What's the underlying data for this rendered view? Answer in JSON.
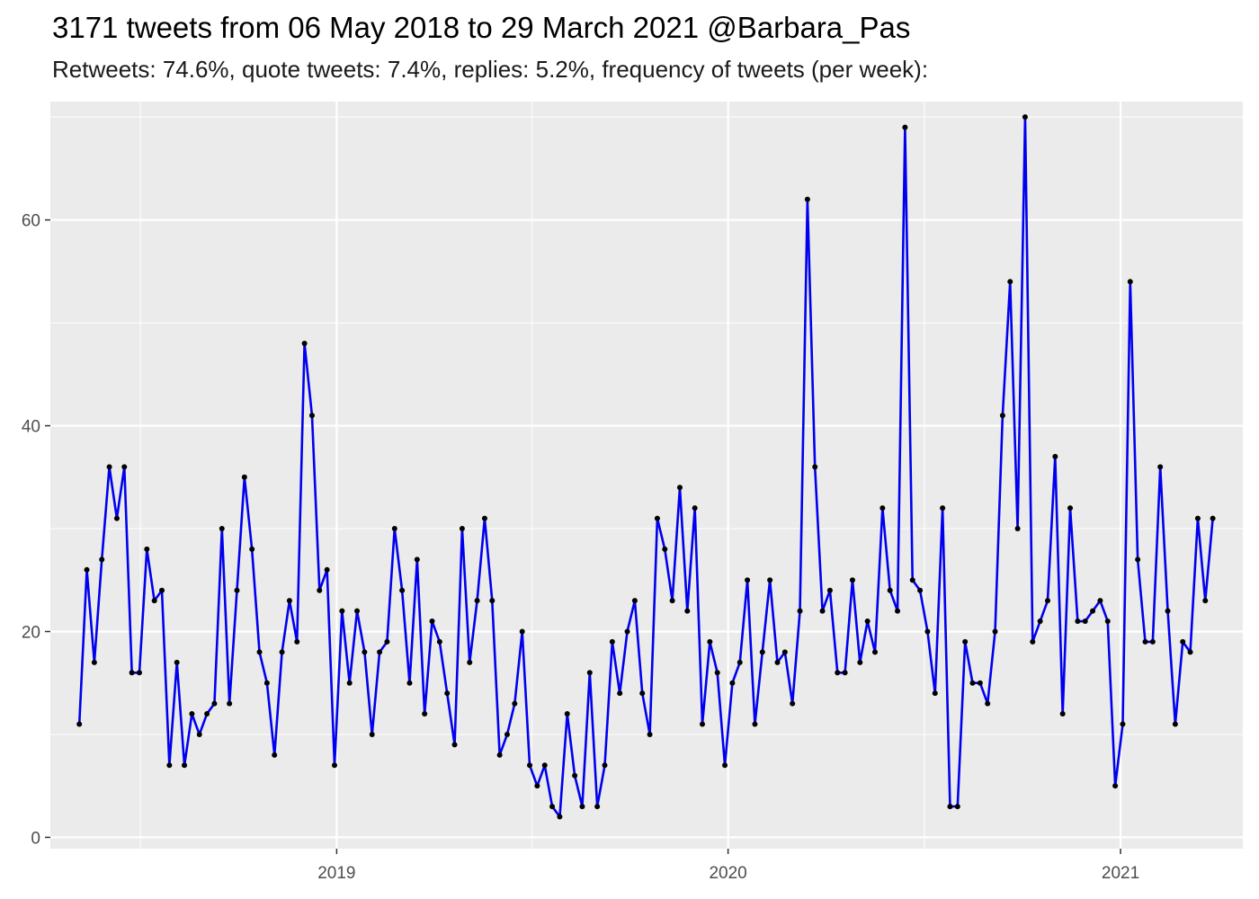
{
  "title": "3171 tweets from 06 May 2018 to 29 March 2021 @Barbara_Pas",
  "subtitle": "Retweets: 74.6%, quote tweets: 7.4%, replies: 5.2%, frequency of tweets (per week):",
  "colors": {
    "line": "#0000ee",
    "point": "#000000",
    "panel": "#ebebeb",
    "grid": "#ffffff"
  },
  "chart_data": {
    "type": "line",
    "title": "3171 tweets from 06 May 2018 to 29 March 2021 @Barbara_Pas",
    "subtitle": "Retweets: 74.6%, quote tweets: 7.4%, replies: 5.2%, frequency of tweets (per week):",
    "xlabel": "",
    "ylabel": "",
    "x_type": "date",
    "x_start": "2018-05-06",
    "x_step_days": 7,
    "xlim": [
      "2018-04-09",
      "2021-04-25"
    ],
    "ylim": [
      -1.1,
      71.5
    ],
    "y_ticks": [
      0,
      20,
      40,
      60
    ],
    "x_ticks": [
      {
        "date": "2019-01-01",
        "label": "2019"
      },
      {
        "date": "2020-01-01",
        "label": "2020"
      },
      {
        "date": "2021-01-01",
        "label": "2021"
      }
    ],
    "grid": true,
    "legend": "none",
    "values": [
      11,
      26,
      17,
      27,
      36,
      31,
      36,
      16,
      16,
      28,
      23,
      24,
      7,
      17,
      7,
      12,
      10,
      12,
      13,
      30,
      13,
      24,
      35,
      28,
      18,
      15,
      8,
      18,
      23,
      19,
      48,
      41,
      24,
      26,
      7,
      22,
      15,
      22,
      18,
      10,
      18,
      19,
      30,
      24,
      15,
      27,
      12,
      21,
      19,
      14,
      9,
      30,
      17,
      23,
      31,
      23,
      8,
      10,
      13,
      20,
      7,
      5,
      7,
      3,
      2,
      12,
      6,
      3,
      16,
      3,
      7,
      19,
      14,
      20,
      23,
      14,
      10,
      31,
      28,
      23,
      34,
      22,
      32,
      11,
      19,
      16,
      7,
      15,
      17,
      25,
      11,
      18,
      25,
      17,
      18,
      13,
      22,
      62,
      36,
      22,
      24,
      16,
      16,
      25,
      17,
      21,
      18,
      32,
      24,
      22,
      69,
      25,
      24,
      20,
      14,
      32,
      3,
      3,
      19,
      15,
      15,
      13,
      20,
      41,
      54,
      30,
      70,
      19,
      21,
      23,
      37,
      12,
      32,
      21,
      21,
      22,
      23,
      21,
      5,
      11,
      54,
      27,
      19,
      19,
      36,
      22,
      11,
      19,
      18,
      31,
      23,
      31
    ]
  }
}
